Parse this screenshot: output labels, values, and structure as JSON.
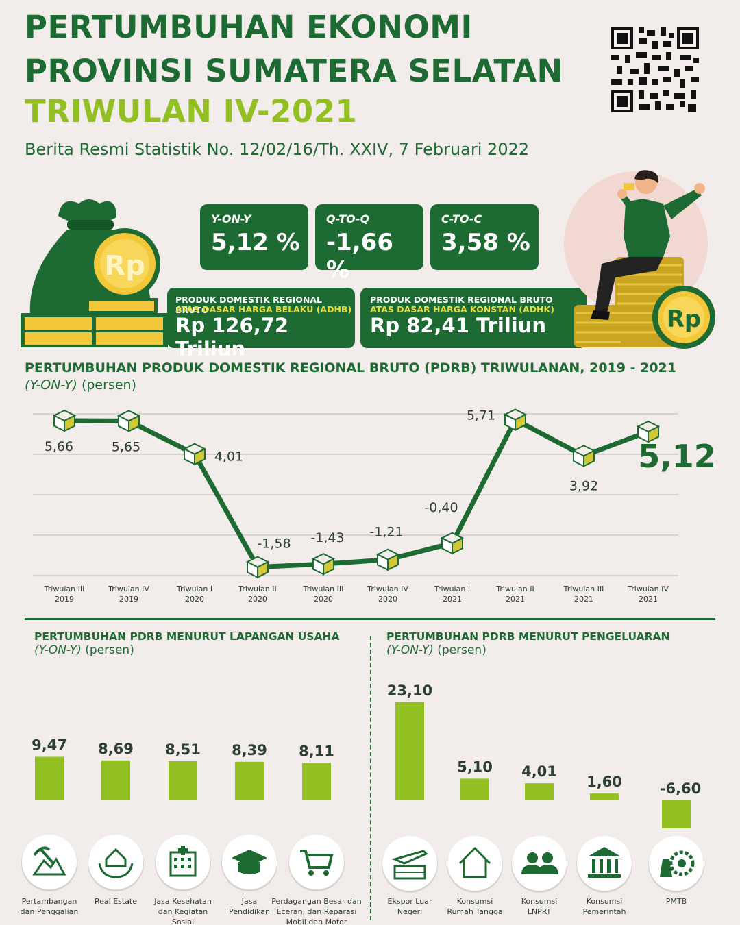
{
  "header": {
    "title_line1": "PERTUMBUHAN EKONOMI",
    "title_line2": "PROVINSI SUMATERA SELATAN",
    "subtitle": "TRIWULAN IV-2021",
    "release": "Berita Resmi Statistik No. 12/02/16/Th. XXIV, 7 Februari 2022"
  },
  "kpis": [
    {
      "label": "Y-ON-Y",
      "value": "5,12 %"
    },
    {
      "label": "Q-TO-Q",
      "value": "-1,66 %"
    },
    {
      "label": "C-TO-C",
      "value": "3,58 %"
    }
  ],
  "pdrb": [
    {
      "line1": "PRODUK DOMESTIK REGIONAL BRUTO",
      "line2": "ATAS DASAR HARGA BELAKU (ADHB)",
      "value": "Rp 126,72 Triliun"
    },
    {
      "line1": "PRODUK DOMESTIK REGIONAL BRUTO",
      "line2": "ATAS DASAR HARGA KONSTAN (ADHK)",
      "value": "Rp 82,41 Triliun"
    }
  ],
  "coin_symbol": "Rp",
  "colors": {
    "dark_green": "#1d6b33",
    "lime": "#92c023",
    "gold": "#f2c83a",
    "background": "#f2ecea"
  },
  "chart_data": [
    {
      "type": "line",
      "title": "PERTUMBUHAN PRODUK DOMESTIK REGIONAL BRUTO (PDRB) TRIWULANAN, 2019 - 2021",
      "subtitle_italic": "(Y-ON-Y)",
      "subtitle_rest": " (persen)",
      "categories": [
        [
          "Triwulan III",
          "2019"
        ],
        [
          "Triwulan IV",
          "2019"
        ],
        [
          "Triwulan I",
          "2020"
        ],
        [
          "Triwulan II",
          "2020"
        ],
        [
          "Triwulan III",
          "2020"
        ],
        [
          "Triwulan IV",
          "2020"
        ],
        [
          "Triwulan I",
          "2021"
        ],
        [
          "Triwulan II",
          "2021"
        ],
        [
          "Triwulan III",
          "2021"
        ],
        [
          "Triwulan IV",
          "2021"
        ]
      ],
      "values": [
        5.66,
        5.65,
        4.01,
        -1.58,
        -1.43,
        -1.21,
        -0.4,
        5.71,
        3.92,
        5.12
      ],
      "labels": [
        "5,66",
        "5,65",
        "4,01",
        "-1,58",
        "-1,43",
        "-1,21",
        "-0,40",
        "5,71",
        "3,92",
        "5,12"
      ],
      "ylim": [
        -2,
        6
      ],
      "grid": true
    },
    {
      "type": "bar",
      "title": "PERTUMBUHAN PDRB MENURUT LAPANGAN USAHA",
      "subtitle_italic": "(Y-ON-Y)",
      "subtitle_rest": " (persen)",
      "categories": [
        [
          "Pertambangan",
          "dan Penggalian"
        ],
        [
          "Real Estate"
        ],
        [
          "Jasa Kesehatan",
          "dan Kegiatan",
          "Sosial"
        ],
        [
          "Jasa",
          "Pendidikan"
        ],
        [
          "Perdagangan Besar dan",
          "Eceran, dan Reparasi",
          "Mobil dan Motor"
        ]
      ],
      "icons": [
        "mining-icon",
        "real-estate-icon",
        "hospital-icon",
        "graduation-cap-icon",
        "shopping-cart-icon"
      ],
      "values": [
        9.47,
        8.69,
        8.51,
        8.39,
        8.11
      ],
      "labels": [
        "9,47",
        "8,69",
        "8,51",
        "8,39",
        "8,11"
      ]
    },
    {
      "type": "bar",
      "title": "PERTUMBUHAN PDRB MENURUT PENGELUARAN",
      "subtitle_italic": "(Y-ON-Y)",
      "subtitle_rest": " (persen)",
      "categories": [
        [
          "Ekspor Luar",
          "Negeri"
        ],
        [
          "Konsumsi",
          "Rumah Tangga"
        ],
        [
          "Konsumsi",
          "LNPRT"
        ],
        [
          "Konsumsi",
          "Pemerintah"
        ],
        [
          "PMTB"
        ]
      ],
      "icons": [
        "export-plane-icon",
        "house-icon",
        "people-icon",
        "government-building-icon",
        "machinery-icon"
      ],
      "values": [
        23.1,
        5.1,
        4.01,
        1.6,
        -6.6
      ],
      "labels": [
        "23,10",
        "5,10",
        "4,01",
        "1,60",
        "-6,60"
      ]
    }
  ]
}
